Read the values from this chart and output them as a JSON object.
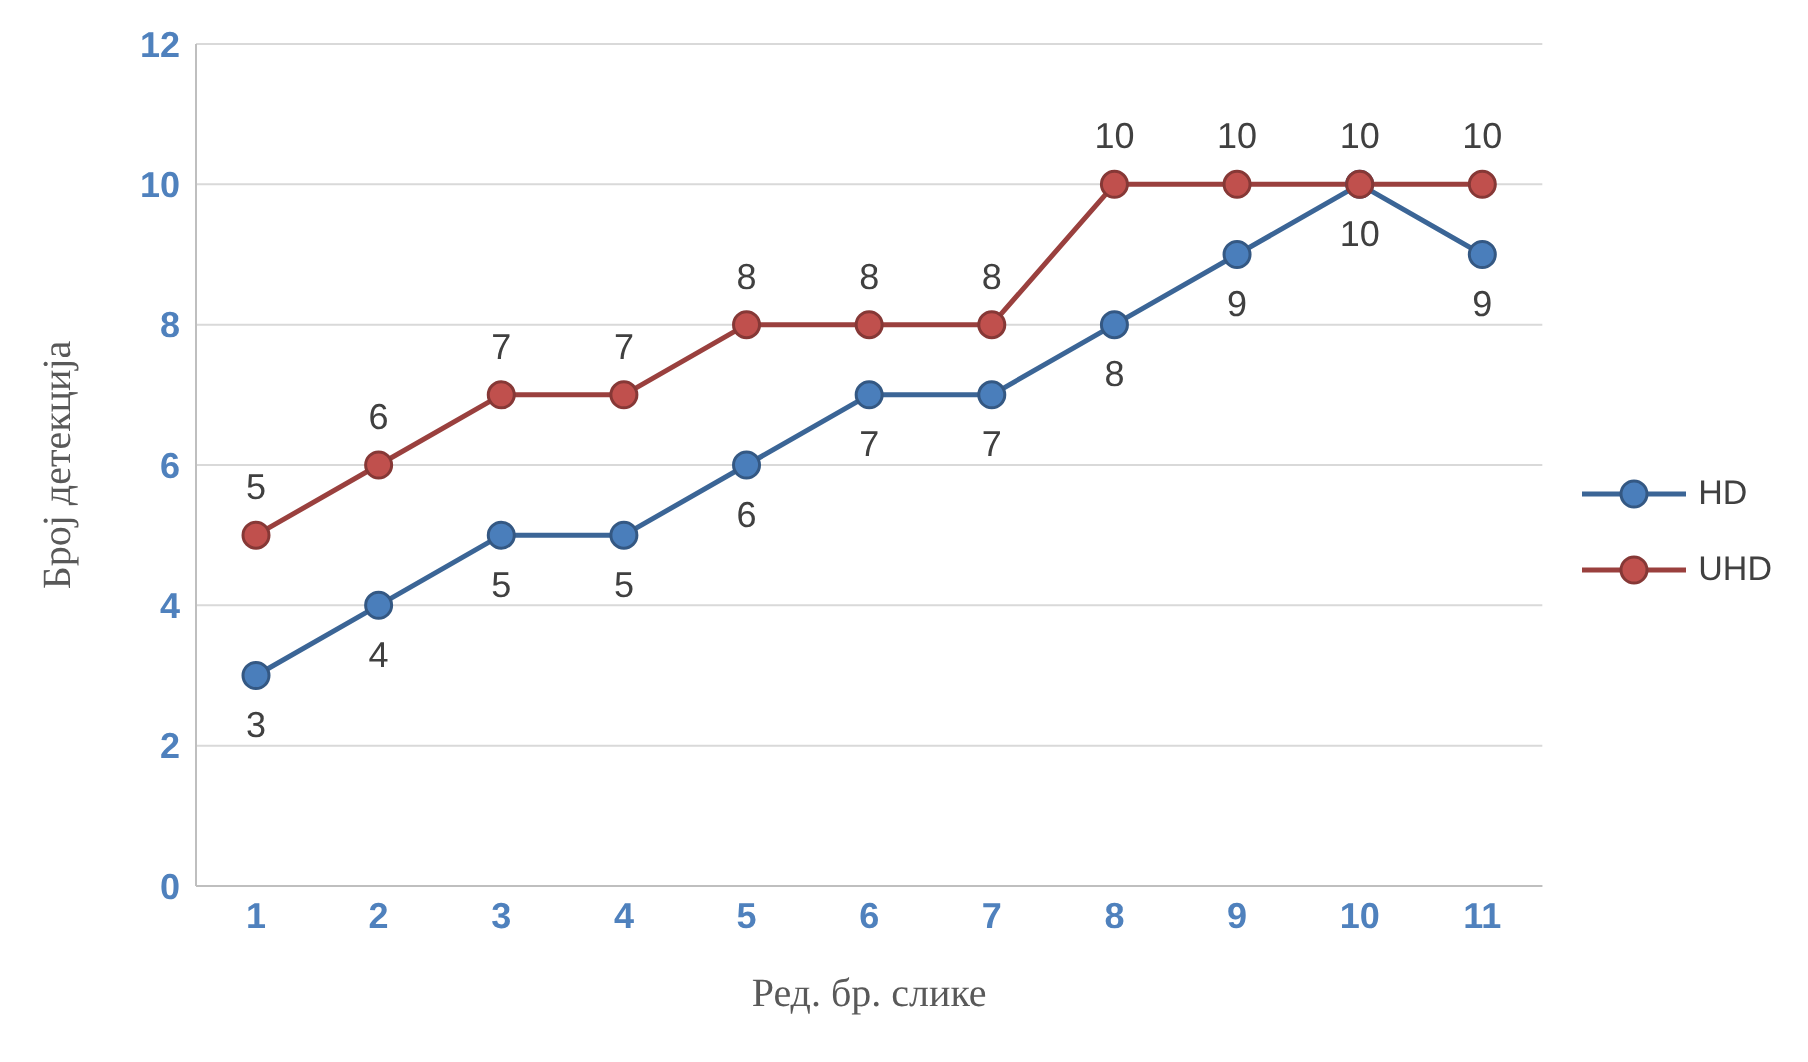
{
  "chart_data": {
    "type": "line",
    "xlabel": "Ред. бр. слике",
    "ylabel": "Број детекција",
    "categories": [
      "1",
      "2",
      "3",
      "4",
      "5",
      "6",
      "7",
      "8",
      "9",
      "10",
      "11"
    ],
    "series": [
      {
        "name": "HD",
        "color": "#4a7ebb",
        "values": [
          3,
          4,
          5,
          5,
          6,
          7,
          7,
          8,
          9,
          10,
          9
        ]
      },
      {
        "name": "UHD",
        "color": "#c0504d",
        "values": [
          5,
          6,
          7,
          7,
          8,
          8,
          8,
          10,
          10,
          10,
          10
        ]
      }
    ],
    "ylim": [
      0,
      12
    ],
    "yticks": [
      0,
      2,
      4,
      6,
      8,
      10,
      12
    ],
    "grid": "y",
    "legend": "right",
    "marker": "circle",
    "line_style": "solid",
    "data_labels": true
  }
}
